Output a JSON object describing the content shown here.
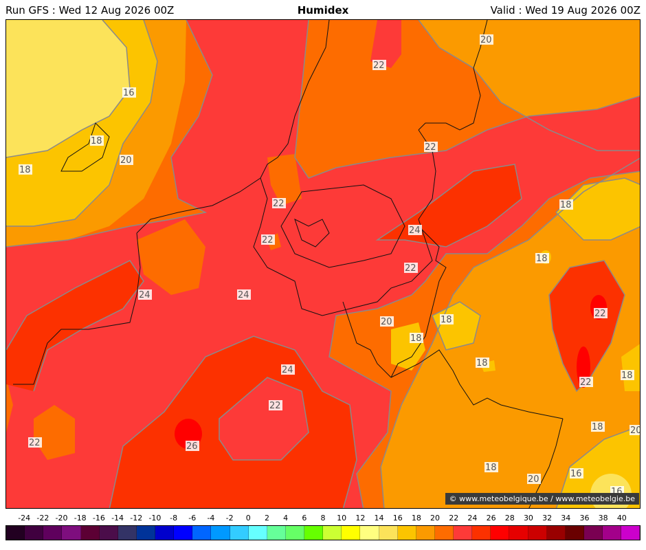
{
  "header": {
    "run": "Run GFS : Wed 12 Aug 2026 00Z",
    "title": "Humidex",
    "valid": "Valid : Wed 19 Aug 2026 00Z"
  },
  "credit": "© www.meteobelgique.be / www.meteobelgie.be",
  "colors": {
    "c16": "#fce35a",
    "c18": "#fcc400",
    "c20": "#fb9a00",
    "c22": "#fd6c00",
    "c24": "#fd3a38",
    "c26": "#fc3100",
    "c28": "#ff0000",
    "contour": "#8a8a8a",
    "border": "#111111"
  },
  "contour_labels": [
    {
      "text": "16"
    },
    {
      "text": "18"
    },
    {
      "text": "20"
    },
    {
      "text": "18"
    },
    {
      "text": "20"
    },
    {
      "text": "22"
    },
    {
      "text": "22"
    },
    {
      "text": "22"
    },
    {
      "text": "22"
    },
    {
      "text": "24"
    },
    {
      "text": "18"
    },
    {
      "text": "18"
    },
    {
      "text": "22"
    },
    {
      "text": "24"
    },
    {
      "text": "24"
    },
    {
      "text": "20"
    },
    {
      "text": "18"
    },
    {
      "text": "18"
    },
    {
      "text": "18"
    },
    {
      "text": "22"
    },
    {
      "text": "22"
    },
    {
      "text": "18"
    },
    {
      "text": "24"
    },
    {
      "text": "22"
    },
    {
      "text": "26"
    },
    {
      "text": "22"
    },
    {
      "text": "18"
    },
    {
      "text": "20"
    },
    {
      "text": "16"
    },
    {
      "text": "16"
    },
    {
      "text": "20"
    },
    {
      "text": "18"
    }
  ],
  "legend": [
    {
      "value": "-24",
      "color": "#220021"
    },
    {
      "value": "-22",
      "color": "#40003f"
    },
    {
      "value": "-20",
      "color": "#5f005d"
    },
    {
      "value": "-18",
      "color": "#7e0e7e"
    },
    {
      "value": "-16",
      "color": "#5c0034"
    },
    {
      "value": "-14",
      "color": "#4b0d4a"
    },
    {
      "value": "-12",
      "color": "#333366"
    },
    {
      "value": "-10",
      "color": "#003399"
    },
    {
      "value": "-8",
      "color": "#0000cc"
    },
    {
      "value": "-6",
      "color": "#0000ff"
    },
    {
      "value": "-4",
      "color": "#0066ff"
    },
    {
      "value": "-2",
      "color": "#0099ff"
    },
    {
      "value": "0",
      "color": "#33ccff"
    },
    {
      "value": "2",
      "color": "#66ffff"
    },
    {
      "value": "4",
      "color": "#66ff99"
    },
    {
      "value": "6",
      "color": "#66ff66"
    },
    {
      "value": "8",
      "color": "#66ff00"
    },
    {
      "value": "10",
      "color": "#ccff33"
    },
    {
      "value": "12",
      "color": "#ffff00"
    },
    {
      "value": "14",
      "color": "#ffff80"
    },
    {
      "value": "16",
      "color": "#fce35a"
    },
    {
      "value": "18",
      "color": "#fcc400"
    },
    {
      "value": "20",
      "color": "#fb9a00"
    },
    {
      "value": "22",
      "color": "#fd6c00"
    },
    {
      "value": "24",
      "color": "#fd3a38"
    },
    {
      "value": "26",
      "color": "#fc3100"
    },
    {
      "value": "28",
      "color": "#ff0000"
    },
    {
      "value": "30",
      "color": "#e60000"
    },
    {
      "value": "32",
      "color": "#cc0000"
    },
    {
      "value": "34",
      "color": "#990000"
    },
    {
      "value": "36",
      "color": "#6a0000"
    },
    {
      "value": "38",
      "color": "#7a0052"
    },
    {
      "value": "40",
      "color": "#a3008a"
    },
    {
      "value": "",
      "color": "#cc00cc"
    }
  ]
}
